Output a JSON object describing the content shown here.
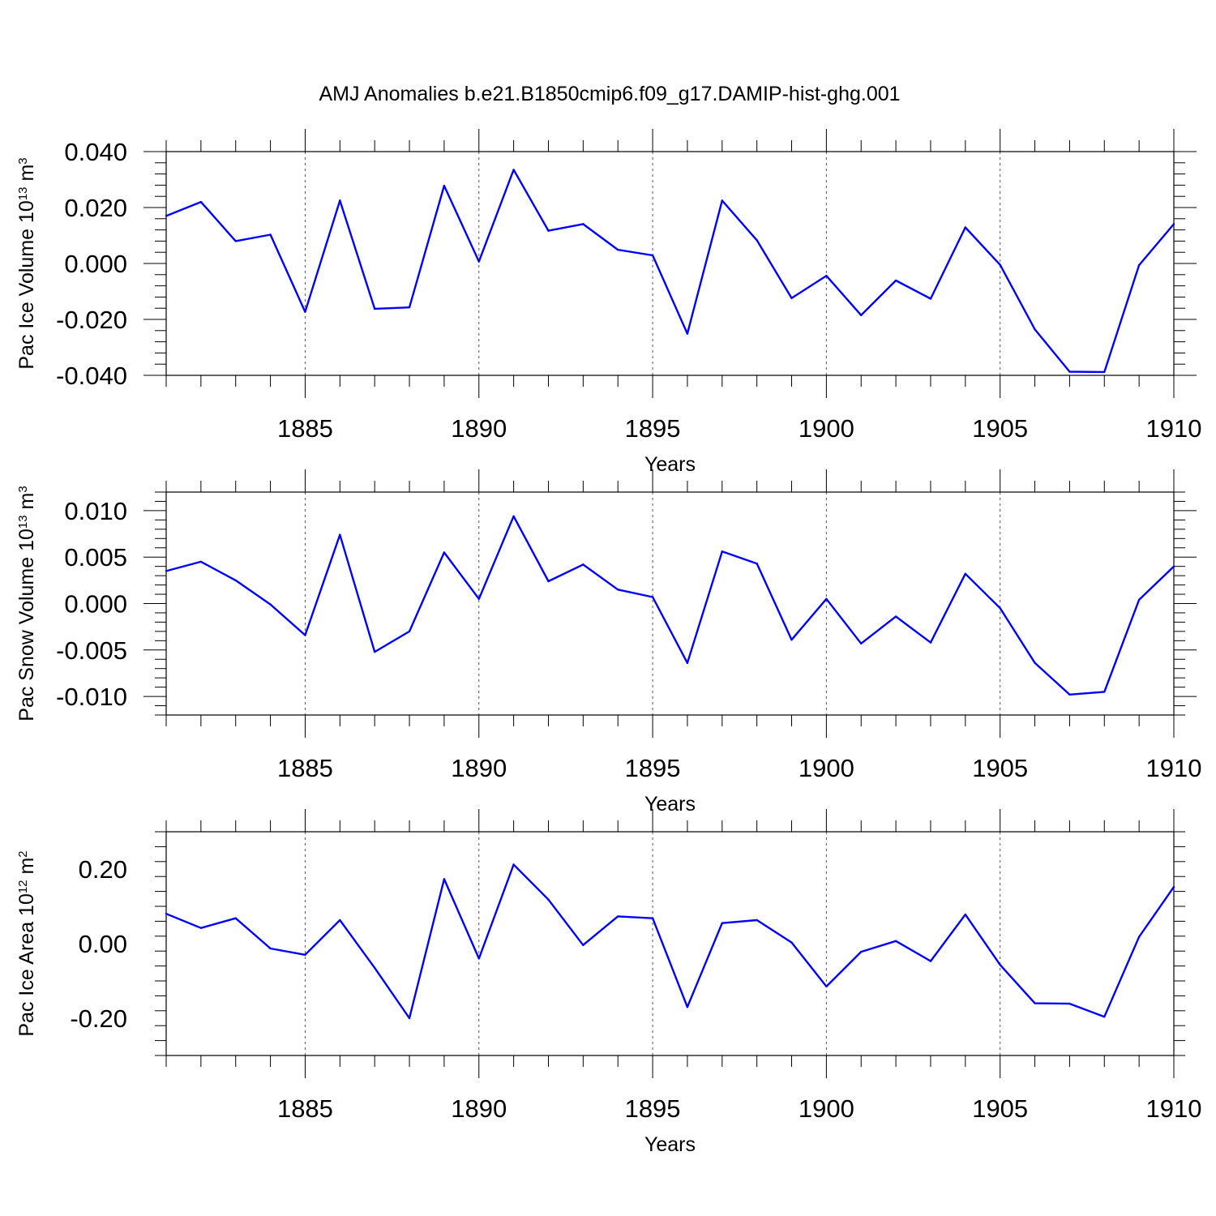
{
  "figure": {
    "title": "AMJ Anomalies b.e21.B1850cmip6.f09_g17.DAMIP-hist-ghg.001"
  },
  "chart_data": [
    {
      "type": "line",
      "xlabel": "Years",
      "ylabel": {
        "base": "Pac Ice Volume 10",
        "exp": "13",
        "unit": " m",
        "unit_exp": "3"
      },
      "xlim": [
        1881,
        1910
      ],
      "ylim": [
        -0.04,
        0.04
      ],
      "x_ticks": [
        1885,
        1890,
        1895,
        1900,
        1905,
        1910
      ],
      "y_ticks": [
        -0.04,
        -0.02,
        0.0,
        0.02,
        0.04
      ],
      "y_tick_labels": [
        "-0.040",
        "-0.020",
        "0.000",
        "0.020",
        "0.040"
      ],
      "grid": "vertical-dashed",
      "line_color": "#0000ff",
      "x": [
        1881,
        1882,
        1883,
        1884,
        1885,
        1886,
        1887,
        1888,
        1889,
        1890,
        1891,
        1892,
        1893,
        1894,
        1895,
        1896,
        1897,
        1898,
        1899,
        1900,
        1901,
        1902,
        1903,
        1904,
        1905,
        1906,
        1907,
        1908,
        1909,
        1910
      ],
      "values": [
        0.017,
        0.022,
        0.008,
        0.0103,
        -0.0173,
        0.0225,
        -0.0162,
        -0.0157,
        0.0278,
        0.0007,
        0.0335,
        0.0117,
        0.0141,
        0.0049,
        0.0029,
        -0.0251,
        0.0225,
        0.0083,
        -0.0124,
        -0.0044,
        -0.0185,
        -0.0061,
        -0.0126,
        0.0129,
        -0.0005,
        -0.0236,
        -0.0387,
        -0.0388,
        -0.0006,
        0.0141
      ]
    },
    {
      "type": "line",
      "xlabel": "Years",
      "ylabel": {
        "base": "Pac Snow Volume 10",
        "exp": "13",
        "unit": " m",
        "unit_exp": "3"
      },
      "xlim": [
        1881,
        1910
      ],
      "ylim": [
        -0.012,
        0.012
      ],
      "x_ticks": [
        1885,
        1890,
        1895,
        1900,
        1905,
        1910
      ],
      "y_ticks": [
        -0.01,
        -0.005,
        0.0,
        0.005,
        0.01
      ],
      "y_tick_labels": [
        "-0.010",
        "-0.005",
        "0.000",
        "0.005",
        "0.010"
      ],
      "grid": "vertical-dashed",
      "line_color": "#0000ff",
      "x": [
        1881,
        1882,
        1883,
        1884,
        1885,
        1886,
        1887,
        1888,
        1889,
        1890,
        1891,
        1892,
        1893,
        1894,
        1895,
        1896,
        1897,
        1898,
        1899,
        1900,
        1901,
        1902,
        1903,
        1904,
        1905,
        1906,
        1907,
        1908,
        1909,
        1910
      ],
      "values": [
        0.0035,
        0.0045,
        0.0025,
        -0.0001,
        -0.0034,
        0.0074,
        -0.0052,
        -0.003,
        0.0055,
        0.0005,
        0.0094,
        0.0024,
        0.0042,
        0.0015,
        0.0007,
        -0.0064,
        0.0056,
        0.0043,
        -0.0039,
        0.0005,
        -0.0043,
        -0.0014,
        -0.0042,
        0.0032,
        -0.0005,
        -0.0064,
        -0.0098,
        -0.0095,
        0.0004,
        0.004
      ]
    },
    {
      "type": "line",
      "xlabel": "Years",
      "ylabel": {
        "base": "Pac Ice Area 10",
        "exp": "12",
        "unit": " m",
        "unit_exp": "2"
      },
      "xlim": [
        1881,
        1910
      ],
      "ylim": [
        -0.3,
        0.3
      ],
      "x_ticks": [
        1885,
        1890,
        1895,
        1900,
        1905,
        1910
      ],
      "y_ticks": [
        -0.2,
        0.0,
        0.2
      ],
      "y_tick_labels": [
        "-0.20",
        "0.00",
        "0.20"
      ],
      "grid": "vertical-dashed",
      "line_color": "#0000ff",
      "x": [
        1881,
        1882,
        1883,
        1884,
        1885,
        1886,
        1887,
        1888,
        1889,
        1890,
        1891,
        1892,
        1893,
        1894,
        1895,
        1896,
        1897,
        1898,
        1899,
        1900,
        1901,
        1902,
        1903,
        1904,
        1905,
        1906,
        1907,
        1908,
        1909,
        1910
      ],
      "values": [
        0.08,
        0.042,
        0.068,
        -0.013,
        -0.03,
        0.063,
        -0.065,
        -0.2,
        0.173,
        -0.04,
        0.212,
        0.118,
        -0.004,
        0.073,
        0.068,
        -0.17,
        0.055,
        0.063,
        0.003,
        -0.115,
        -0.022,
        0.007,
        -0.047,
        0.078,
        -0.057,
        -0.16,
        -0.161,
        -0.196,
        0.018,
        0.152
      ]
    }
  ]
}
